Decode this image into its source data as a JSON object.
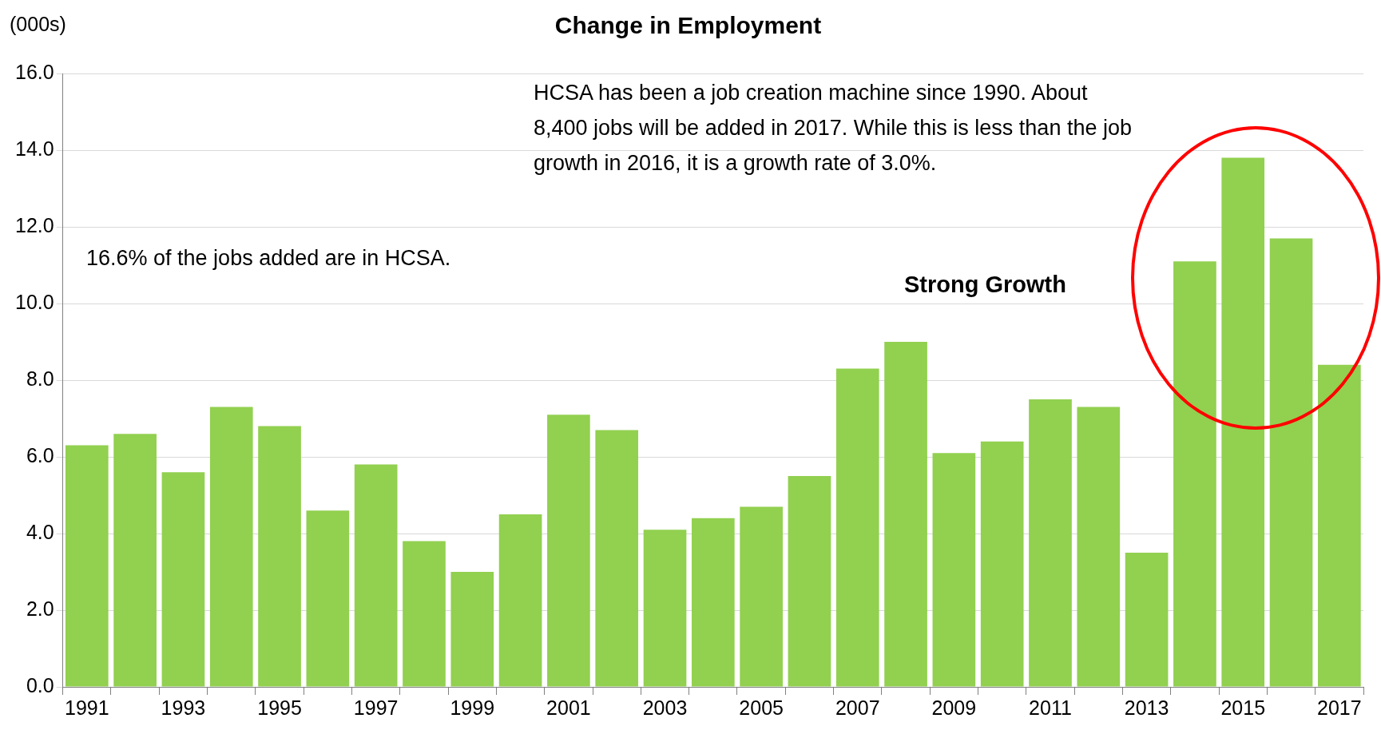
{
  "chart_data": {
    "type": "bar",
    "title": "Change in Employment",
    "ylabel": "(000s)",
    "categories": [
      "1991",
      null,
      "1993",
      null,
      "1995",
      null,
      "1997",
      null,
      "1999",
      null,
      "2001",
      null,
      "2003",
      null,
      "2005",
      null,
      "2007",
      null,
      "2009",
      null,
      "2011",
      null,
      "2013",
      null,
      "2015",
      null,
      "2017"
    ],
    "values": [
      6.3,
      6.6,
      5.6,
      7.3,
      6.8,
      4.6,
      5.8,
      3.8,
      3.0,
      4.5,
      7.1,
      6.7,
      4.1,
      4.4,
      4.7,
      5.5,
      8.3,
      9.0,
      6.1,
      6.4,
      7.5,
      7.3,
      3.5,
      11.1,
      13.8,
      11.7,
      8.4
    ],
    "color": "#92d050",
    "ylim": [
      0,
      16
    ],
    "yticks": [
      {
        "value": 0,
        "label": "0.0"
      },
      {
        "value": 2,
        "label": "2.0"
      },
      {
        "value": 4,
        "label": "4.0"
      },
      {
        "value": 6,
        "label": "6.0"
      },
      {
        "value": 8,
        "label": "8.0"
      },
      {
        "value": 10,
        "label": "10.0"
      },
      {
        "value": 12,
        "label": "12.0"
      },
      {
        "value": 14,
        "label": "14.0"
      },
      {
        "value": 16,
        "label": "16.0"
      }
    ],
    "grid": "y",
    "annotations": [
      "HCSA has been a job creation machine since 1990. About 8,400 jobs will be added in 2017. While this is less than the job growth in 2016, it is a growth rate of 3.0%.",
      "16.6% of the jobs added are in HCSA.",
      "Strong Growth"
    ]
  }
}
